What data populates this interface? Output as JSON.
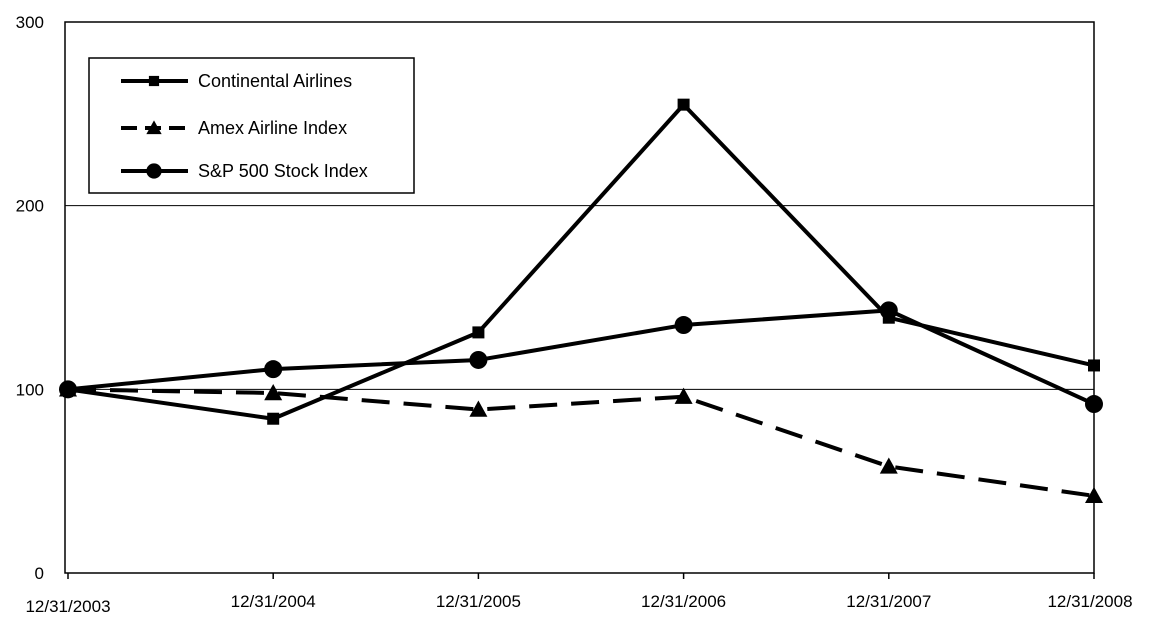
{
  "chart_data": {
    "type": "line",
    "title": "",
    "xlabel": "",
    "ylabel": "",
    "categories": [
      "12/31/2003",
      "12/31/2004",
      "12/31/2005",
      "12/31/2006",
      "12/31/2007",
      "12/31/2008"
    ],
    "ylim": [
      0,
      300
    ],
    "y_ticks": [
      "0",
      "100",
      "200",
      "300"
    ],
    "grid": "horizontal major gridlines at 100, 200",
    "legend_position": "top-left",
    "series": [
      {
        "name": "Continental Airlines",
        "values": [
          100,
          84,
          131,
          255,
          139,
          113
        ],
        "line_style": "solid",
        "marker": "square",
        "color": "#000000"
      },
      {
        "name": "Amex Airline Index",
        "values": [
          100,
          98,
          89,
          96,
          58,
          42
        ],
        "line_style": "dashed",
        "marker": "triangle",
        "color": "#000000"
      },
      {
        "name": "S&P 500 Stock Index",
        "values": [
          100,
          111,
          116,
          135,
          143,
          92
        ],
        "line_style": "solid",
        "marker": "circle",
        "color": "#000000"
      }
    ]
  }
}
